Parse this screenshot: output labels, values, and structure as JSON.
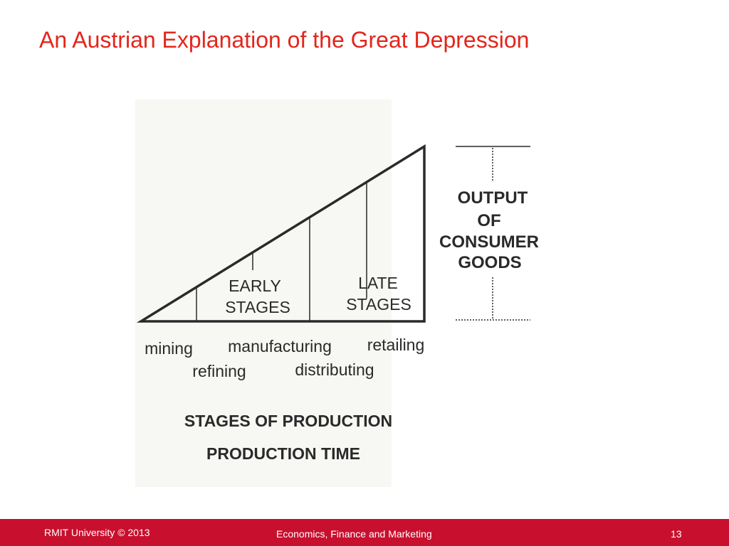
{
  "slide": {
    "title": "An Austrian Explanation of the Great Depression"
  },
  "diagram": {
    "stage_labels": {
      "early_line1": "EARLY",
      "early_line2": "STAGES",
      "late_line1": "LATE",
      "late_line2": "STAGES"
    },
    "output_label": [
      "OUTPUT",
      "OF",
      "CONSUMER",
      "GOODS"
    ],
    "stages": {
      "mining": "mining",
      "refining": "refining",
      "manufacturing": "manufacturing",
      "distributing": "distributing",
      "retailing": "retailing"
    },
    "axis_title": "STAGES OF PRODUCTION",
    "axis_subtitle": "PRODUCTION TIME"
  },
  "footer": {
    "copyright": "RMIT University © 2013",
    "department": "Economics, Finance and Marketing",
    "page_number": "13"
  },
  "colors": {
    "title": "#e3261c",
    "footer_background": "#c8102e",
    "footer_text": "#ffffff"
  }
}
